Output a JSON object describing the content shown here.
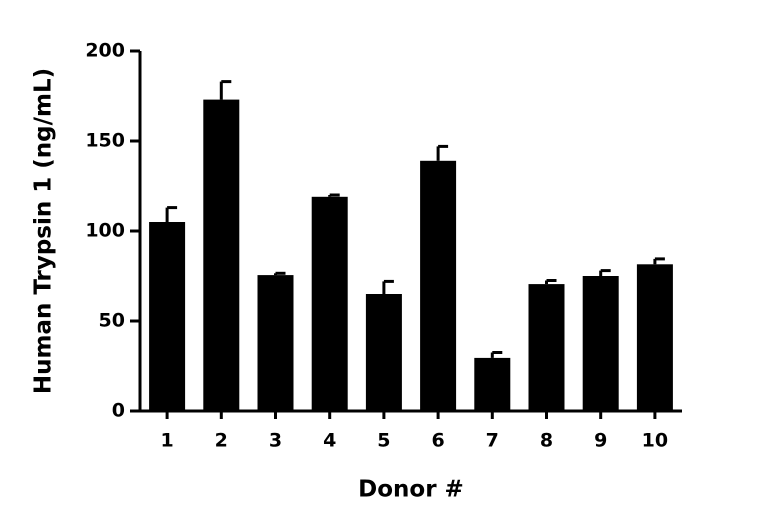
{
  "chart_data": {
    "type": "bar",
    "categories": [
      "1",
      "2",
      "3",
      "4",
      "5",
      "6",
      "7",
      "8",
      "9",
      "10"
    ],
    "values": [
      105,
      173,
      75.5,
      119,
      65,
      139,
      29.5,
      70.5,
      75,
      81.5
    ],
    "errors": [
      8,
      10,
      1,
      1,
      7,
      8,
      3,
      2,
      3,
      3
    ],
    "color": "#000000",
    "xlabel": "Donor #",
    "ylabel": "Human Trypsin 1 (ng/mL)",
    "ylim": [
      0,
      200
    ],
    "yticks": [
      0,
      50,
      100,
      150,
      200
    ],
    "grid": false
  }
}
